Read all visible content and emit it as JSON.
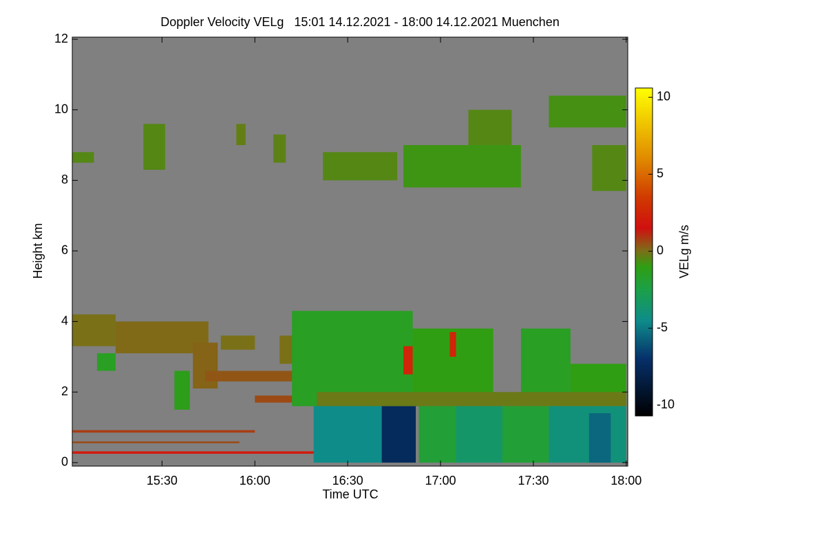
{
  "chart_data": {
    "type": "time-height",
    "title": "Doppler Velocity VELg   15:01 14.12.2021 - 18:00 14.12.2021 Muenchen",
    "x_label": "Time UTC",
    "y_label": "Height km",
    "colorbar_label": "VELg m/s",
    "xlim": [
      901,
      1080.5
    ],
    "xticks": [
      {
        "value": 930,
        "label": "15:30"
      },
      {
        "value": 960,
        "label": "16:00"
      },
      {
        "value": 990,
        "label": "16:30"
      },
      {
        "value": 1020,
        "label": "17:00"
      },
      {
        "value": 1050,
        "label": "17:30"
      },
      {
        "value": 1080,
        "label": "18:00"
      }
    ],
    "ylim": [
      -0.1,
      12.06
    ],
    "yticks": [
      0,
      2,
      4,
      6,
      8,
      10,
      12
    ],
    "clim": [
      -10.7,
      10.6
    ],
    "cticks": [
      -10,
      -5,
      0,
      5,
      10
    ],
    "background_color": "#808080",
    "colorscale": [
      [
        -10.7,
        "#000000"
      ],
      [
        -7,
        "#06306a"
      ],
      [
        -4.5,
        "#0e8c8a"
      ],
      [
        -2.5,
        "#1ca048"
      ],
      [
        -1,
        "#2f9e12"
      ],
      [
        0,
        "#7a7018"
      ],
      [
        1.5,
        "#d01010"
      ],
      [
        3.5,
        "#d03a00"
      ],
      [
        6,
        "#e08a00"
      ],
      [
        10.6,
        "#ffff00"
      ]
    ],
    "regions": [
      {
        "t": [
          901,
          915
        ],
        "h": [
          3.3,
          4.2
        ],
        "v": 0
      },
      {
        "t": [
          915,
          945
        ],
        "h": [
          3.1,
          4.0
        ],
        "v": 0.1
      },
      {
        "t": [
          909,
          915
        ],
        "h": [
          2.6,
          3.1
        ],
        "v": -1.5
      },
      {
        "t": [
          934,
          939
        ],
        "h": [
          1.5,
          2.6
        ],
        "v": -1.2
      },
      {
        "t": [
          940,
          948
        ],
        "h": [
          2.1,
          3.4
        ],
        "v": 0.2
      },
      {
        "t": [
          944,
          978
        ],
        "h": [
          2.3,
          2.6
        ],
        "v": 0.4
      },
      {
        "t": [
          949,
          960
        ],
        "h": [
          3.2,
          3.6
        ],
        "v": 0
      },
      {
        "t": [
          968,
          973
        ],
        "h": [
          2.8,
          3.6
        ],
        "v": 0
      },
      {
        "t": [
          960,
          978
        ],
        "h": [
          1.7,
          1.9
        ],
        "v": 0.6
      },
      {
        "t": [
          901,
          980
        ],
        "h": [
          0.25,
          0.32
        ],
        "v": 2
      },
      {
        "t": [
          901,
          960
        ],
        "h": [
          0.85,
          0.92
        ],
        "v": 0.8
      },
      {
        "t": [
          901,
          955
        ],
        "h": [
          0.55,
          0.6
        ],
        "v": 0.6
      },
      {
        "t": [
          972,
          1011
        ],
        "h": [
          1.6,
          4.3
        ],
        "v": -1.5
      },
      {
        "t": [
          1011,
          1037
        ],
        "h": [
          1.6,
          3.8
        ],
        "v": -1
      },
      {
        "t": [
          1046,
          1062
        ],
        "h": [
          1.6,
          3.8
        ],
        "v": -1.5
      },
      {
        "t": [
          1062,
          1080
        ],
        "h": [
          1.6,
          2.8
        ],
        "v": -1
      },
      {
        "t": [
          980,
          1080
        ],
        "h": [
          1.6,
          2.0
        ],
        "v": -0.2
      },
      {
        "t": [
          1008,
          1011
        ],
        "h": [
          2.5,
          3.3
        ],
        "v": 2.5
      },
      {
        "t": [
          1023,
          1025
        ],
        "h": [
          3.0,
          3.7
        ],
        "v": 2.5
      },
      {
        "t": [
          979,
          1001
        ],
        "h": [
          0,
          1.6
        ],
        "v": -4.5
      },
      {
        "t": [
          1001,
          1012
        ],
        "h": [
          0,
          1.6
        ],
        "v": -7.5
      },
      {
        "t": [
          1013,
          1025
        ],
        "h": [
          0,
          1.6
        ],
        "v": -2
      },
      {
        "t": [
          1025,
          1040
        ],
        "h": [
          0,
          1.6
        ],
        "v": -3.5
      },
      {
        "t": [
          1040,
          1055
        ],
        "h": [
          0,
          1.6
        ],
        "v": -2
      },
      {
        "t": [
          1055,
          1080
        ],
        "h": [
          0,
          1.6
        ],
        "v": -4
      },
      {
        "t": [
          1068,
          1075
        ],
        "h": [
          0,
          1.4
        ],
        "v": -5.5
      },
      {
        "t": [
          901,
          908
        ],
        "h": [
          8.5,
          8.8
        ],
        "v": -0.5
      },
      {
        "t": [
          924,
          931
        ],
        "h": [
          8.3,
          9.6
        ],
        "v": -0.5
      },
      {
        "t": [
          954,
          957
        ],
        "h": [
          9.0,
          9.6
        ],
        "v": -0.3
      },
      {
        "t": [
          966,
          970
        ],
        "h": [
          8.5,
          9.3
        ],
        "v": -0.4
      },
      {
        "t": [
          982,
          1006
        ],
        "h": [
          8.0,
          8.8
        ],
        "v": -0.5
      },
      {
        "t": [
          1008,
          1046
        ],
        "h": [
          7.8,
          9.0
        ],
        "v": -0.8
      },
      {
        "t": [
          1029,
          1043
        ],
        "h": [
          9.0,
          10.0
        ],
        "v": -0.5
      },
      {
        "t": [
          1055,
          1080
        ],
        "h": [
          9.5,
          10.4
        ],
        "v": -0.7
      },
      {
        "t": [
          1069,
          1080
        ],
        "h": [
          7.7,
          9.0
        ],
        "v": -0.5
      }
    ]
  }
}
